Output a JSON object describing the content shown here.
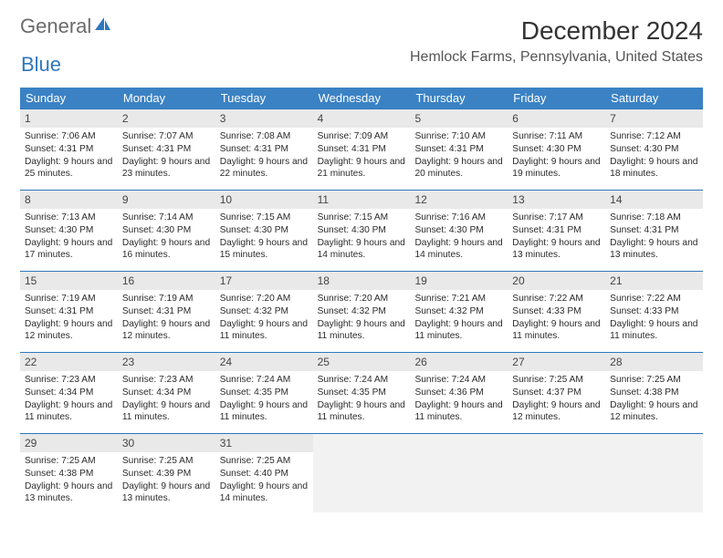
{
  "brand": {
    "word1": "General",
    "word2": "Blue"
  },
  "title": "December 2024",
  "location": "Hemlock Farms, Pennsylvania, United States",
  "colors": {
    "header_bg": "#3b82c4",
    "header_text": "#ffffff",
    "row_divider": "#2f78bd",
    "daynum_bg": "#e9e9e9",
    "empty_bg": "#f2f2f2",
    "text": "#2b2b2b"
  },
  "day_headers": [
    "Sunday",
    "Monday",
    "Tuesday",
    "Wednesday",
    "Thursday",
    "Friday",
    "Saturday"
  ],
  "weeks": [
    [
      {
        "n": "1",
        "sr": "7:06 AM",
        "ss": "4:31 PM",
        "dl": "9 hours and 25 minutes."
      },
      {
        "n": "2",
        "sr": "7:07 AM",
        "ss": "4:31 PM",
        "dl": "9 hours and 23 minutes."
      },
      {
        "n": "3",
        "sr": "7:08 AM",
        "ss": "4:31 PM",
        "dl": "9 hours and 22 minutes."
      },
      {
        "n": "4",
        "sr": "7:09 AM",
        "ss": "4:31 PM",
        "dl": "9 hours and 21 minutes."
      },
      {
        "n": "5",
        "sr": "7:10 AM",
        "ss": "4:31 PM",
        "dl": "9 hours and 20 minutes."
      },
      {
        "n": "6",
        "sr": "7:11 AM",
        "ss": "4:30 PM",
        "dl": "9 hours and 19 minutes."
      },
      {
        "n": "7",
        "sr": "7:12 AM",
        "ss": "4:30 PM",
        "dl": "9 hours and 18 minutes."
      }
    ],
    [
      {
        "n": "8",
        "sr": "7:13 AM",
        "ss": "4:30 PM",
        "dl": "9 hours and 17 minutes."
      },
      {
        "n": "9",
        "sr": "7:14 AM",
        "ss": "4:30 PM",
        "dl": "9 hours and 16 minutes."
      },
      {
        "n": "10",
        "sr": "7:15 AM",
        "ss": "4:30 PM",
        "dl": "9 hours and 15 minutes."
      },
      {
        "n": "11",
        "sr": "7:15 AM",
        "ss": "4:30 PM",
        "dl": "9 hours and 14 minutes."
      },
      {
        "n": "12",
        "sr": "7:16 AM",
        "ss": "4:30 PM",
        "dl": "9 hours and 14 minutes."
      },
      {
        "n": "13",
        "sr": "7:17 AM",
        "ss": "4:31 PM",
        "dl": "9 hours and 13 minutes."
      },
      {
        "n": "14",
        "sr": "7:18 AM",
        "ss": "4:31 PM",
        "dl": "9 hours and 13 minutes."
      }
    ],
    [
      {
        "n": "15",
        "sr": "7:19 AM",
        "ss": "4:31 PM",
        "dl": "9 hours and 12 minutes."
      },
      {
        "n": "16",
        "sr": "7:19 AM",
        "ss": "4:31 PM",
        "dl": "9 hours and 12 minutes."
      },
      {
        "n": "17",
        "sr": "7:20 AM",
        "ss": "4:32 PM",
        "dl": "9 hours and 11 minutes."
      },
      {
        "n": "18",
        "sr": "7:20 AM",
        "ss": "4:32 PM",
        "dl": "9 hours and 11 minutes."
      },
      {
        "n": "19",
        "sr": "7:21 AM",
        "ss": "4:32 PM",
        "dl": "9 hours and 11 minutes."
      },
      {
        "n": "20",
        "sr": "7:22 AM",
        "ss": "4:33 PM",
        "dl": "9 hours and 11 minutes."
      },
      {
        "n": "21",
        "sr": "7:22 AM",
        "ss": "4:33 PM",
        "dl": "9 hours and 11 minutes."
      }
    ],
    [
      {
        "n": "22",
        "sr": "7:23 AM",
        "ss": "4:34 PM",
        "dl": "9 hours and 11 minutes."
      },
      {
        "n": "23",
        "sr": "7:23 AM",
        "ss": "4:34 PM",
        "dl": "9 hours and 11 minutes."
      },
      {
        "n": "24",
        "sr": "7:24 AM",
        "ss": "4:35 PM",
        "dl": "9 hours and 11 minutes."
      },
      {
        "n": "25",
        "sr": "7:24 AM",
        "ss": "4:35 PM",
        "dl": "9 hours and 11 minutes."
      },
      {
        "n": "26",
        "sr": "7:24 AM",
        "ss": "4:36 PM",
        "dl": "9 hours and 11 minutes."
      },
      {
        "n": "27",
        "sr": "7:25 AM",
        "ss": "4:37 PM",
        "dl": "9 hours and 12 minutes."
      },
      {
        "n": "28",
        "sr": "7:25 AM",
        "ss": "4:38 PM",
        "dl": "9 hours and 12 minutes."
      }
    ],
    [
      {
        "n": "29",
        "sr": "7:25 AM",
        "ss": "4:38 PM",
        "dl": "9 hours and 13 minutes."
      },
      {
        "n": "30",
        "sr": "7:25 AM",
        "ss": "4:39 PM",
        "dl": "9 hours and 13 minutes."
      },
      {
        "n": "31",
        "sr": "7:25 AM",
        "ss": "4:40 PM",
        "dl": "9 hours and 14 minutes."
      },
      {
        "empty": true
      },
      {
        "empty": true
      },
      {
        "empty": true
      },
      {
        "empty": true
      }
    ]
  ],
  "labels": {
    "sunrise": "Sunrise:",
    "sunset": "Sunset:",
    "daylight": "Daylight:"
  }
}
